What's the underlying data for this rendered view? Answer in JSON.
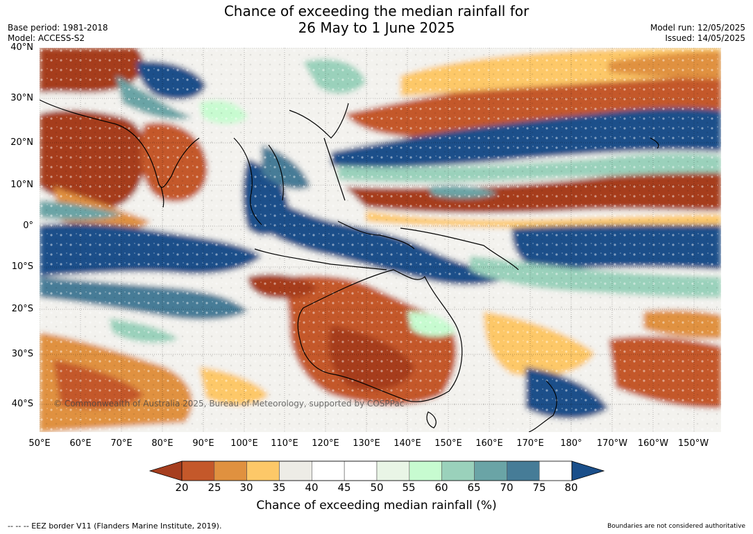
{
  "title_line1": "Chance of exceeding the median rainfall for",
  "title_line2": "26 May to 1 June 2025",
  "base_period": "Base period: 1981-2018",
  "model": "Model: ACCESS-S2",
  "model_run": "Model run: 12/05/2025",
  "issued": "Issued: 14/05/2025",
  "copyright": "© Commonwealth of Australia 2025, Bureau of Meteorology, supported by COSPPac",
  "lat_labels": [
    "40°N",
    "30°N",
    "20°N",
    "10°N",
    "0°",
    "10°S",
    "20°S",
    "30°S",
    "40°S"
  ],
  "lon_labels": [
    "50°E",
    "60°E",
    "70°E",
    "80°E",
    "90°E",
    "100°E",
    "110°E",
    "120°E",
    "130°E",
    "140°E",
    "150°E",
    "160°E",
    "170°E",
    "180°",
    "170°W",
    "160°W",
    "150°W"
  ],
  "colorbar": {
    "ticks": [
      "20",
      "25",
      "30",
      "35",
      "40",
      "45",
      "50",
      "55",
      "60",
      "65",
      "70",
      "75",
      "80"
    ],
    "label": "Chance of exceeding median rainfall (%)",
    "colors": [
      "#a63e1f",
      "#c4582a",
      "#e0913f",
      "#fdc868",
      "#edece6",
      "#ffffff",
      "#ffffff",
      "#e9f5e6",
      "#c7fbd0",
      "#9ad1bb",
      "#6aa4a6",
      "#467c97",
      "#1a4f8a"
    ]
  },
  "footer_left": "--  --  -- EEZ border V11 (Flanders Marine Institute, 2019).",
  "footer_right": "Boundaries are not considered authoritative"
}
